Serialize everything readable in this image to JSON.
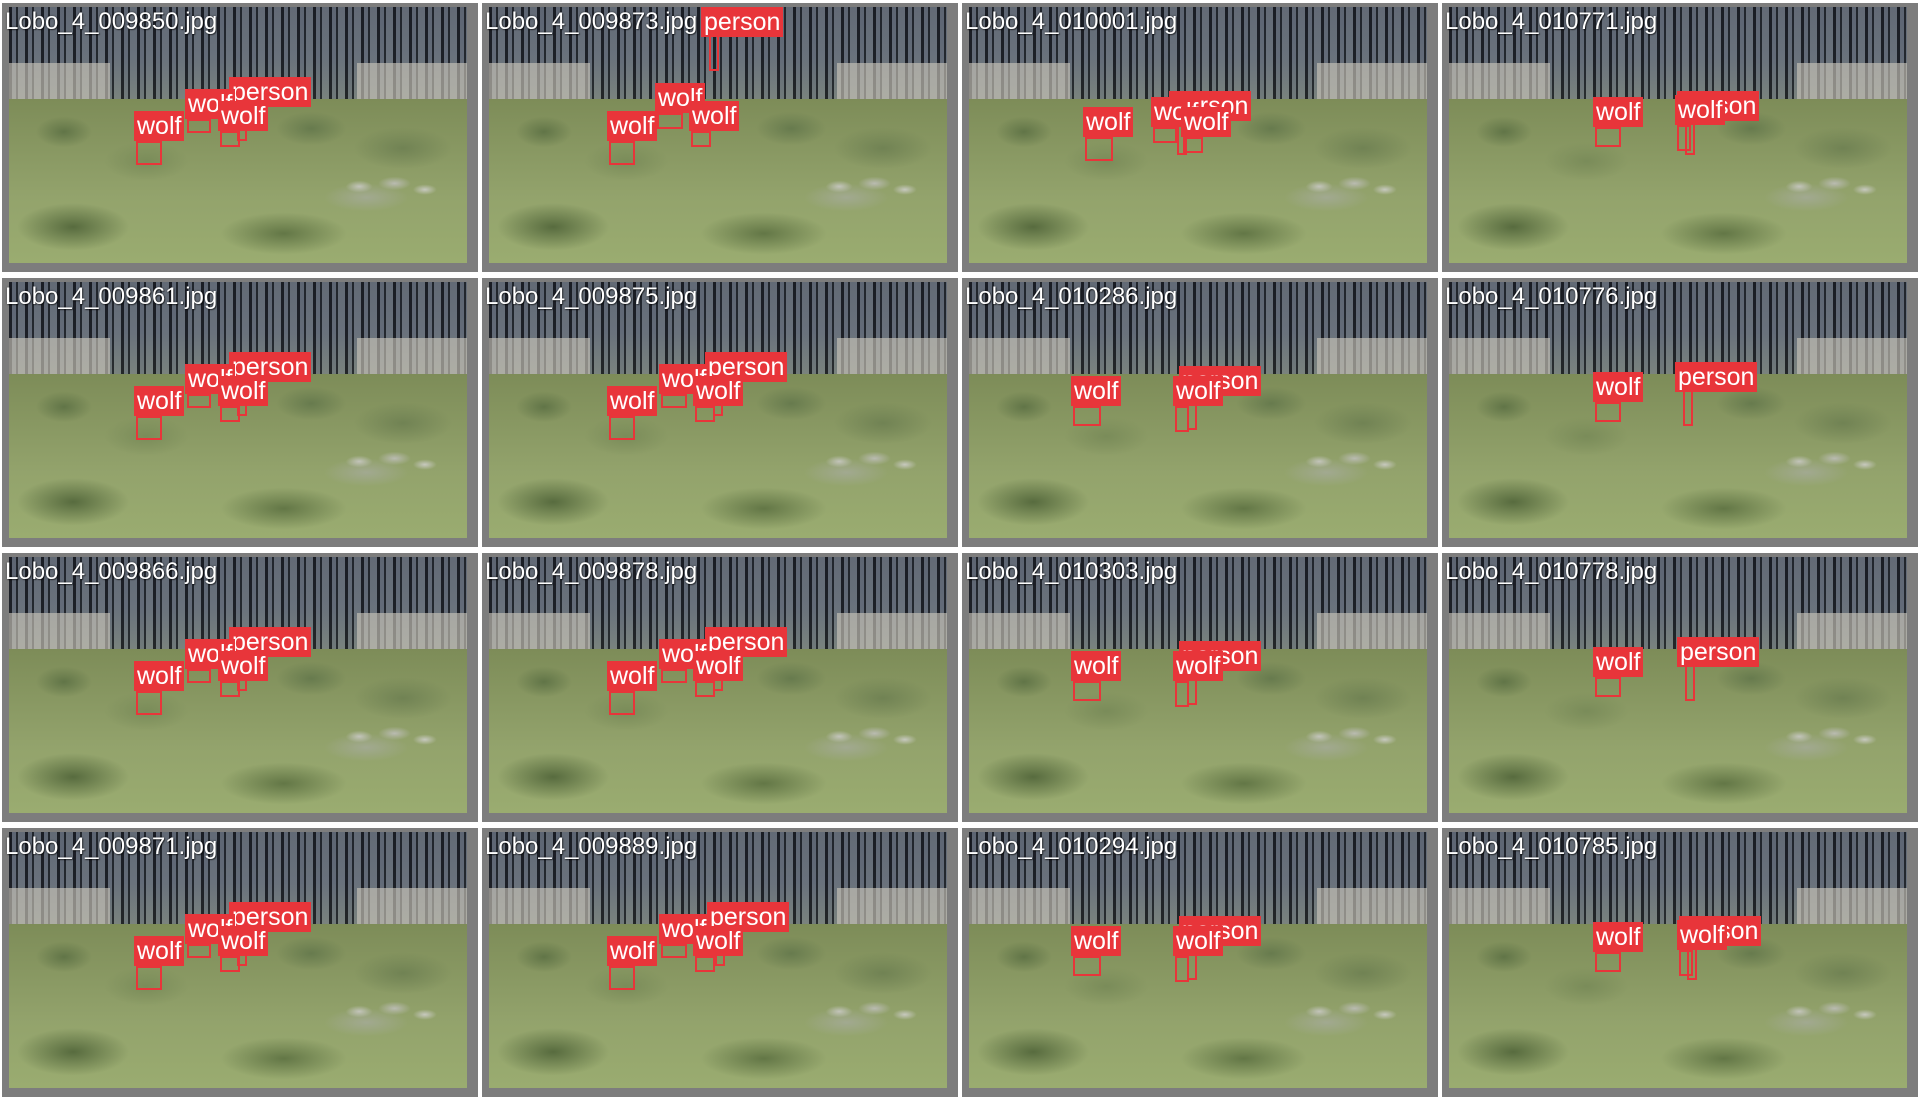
{
  "mosaic": {
    "class_colors": {
      "wolf": "#e8353a",
      "person": "#e8353a"
    },
    "tiles": [
      {
        "filename": "Lobo_4_009850.jpg",
        "detections": [
          {
            "label": "person"
          },
          {
            "label": "wolf"
          },
          {
            "label": "wolf"
          },
          {
            "label": "wolf"
          }
        ]
      },
      {
        "filename": "Lobo_4_009873.jpg",
        "detections": [
          {
            "label": "person"
          },
          {
            "label": "wolf"
          },
          {
            "label": "wolf"
          },
          {
            "label": "wolf"
          }
        ]
      },
      {
        "filename": "Lobo_4_010001.jpg",
        "detections": [
          {
            "label": "person"
          },
          {
            "label": "wolf"
          },
          {
            "label": "wolf"
          },
          {
            "label": "wolf"
          }
        ]
      },
      {
        "filename": "Lobo_4_010771.jpg",
        "detections": [
          {
            "label": "person"
          },
          {
            "label": "wolf"
          },
          {
            "label": "wolf"
          }
        ]
      },
      {
        "filename": "Lobo_4_009861.jpg",
        "detections": [
          {
            "label": "person"
          },
          {
            "label": "wolf"
          },
          {
            "label": "wolf"
          },
          {
            "label": "wolf"
          }
        ]
      },
      {
        "filename": "Lobo_4_009875.jpg",
        "detections": [
          {
            "label": "person"
          },
          {
            "label": "wolf"
          },
          {
            "label": "wolf"
          },
          {
            "label": "wolf"
          }
        ]
      },
      {
        "filename": "Lobo_4_010286.jpg",
        "detections": [
          {
            "label": "person"
          },
          {
            "label": "wolf"
          },
          {
            "label": "wolf"
          }
        ]
      },
      {
        "filename": "Lobo_4_010776.jpg",
        "detections": [
          {
            "label": "person"
          },
          {
            "label": "wolf"
          }
        ]
      },
      {
        "filename": "Lobo_4_009866.jpg",
        "detections": [
          {
            "label": "person"
          },
          {
            "label": "wolf"
          },
          {
            "label": "wolf"
          },
          {
            "label": "wolf"
          }
        ]
      },
      {
        "filename": "Lobo_4_009878.jpg",
        "detections": [
          {
            "label": "person"
          },
          {
            "label": "wolf"
          },
          {
            "label": "wolf"
          },
          {
            "label": "wolf"
          }
        ]
      },
      {
        "filename": "Lobo_4_010303.jpg",
        "detections": [
          {
            "label": "person"
          },
          {
            "label": "wolf"
          },
          {
            "label": "wolf"
          }
        ]
      },
      {
        "filename": "Lobo_4_010778.jpg",
        "detections": [
          {
            "label": "person"
          },
          {
            "label": "wolf"
          }
        ]
      },
      {
        "filename": "Lobo_4_009871.jpg",
        "detections": [
          {
            "label": "person"
          },
          {
            "label": "wolf"
          },
          {
            "label": "wolf"
          },
          {
            "label": "wolf"
          }
        ]
      },
      {
        "filename": "Lobo_4_009889.jpg",
        "detections": [
          {
            "label": "person"
          },
          {
            "label": "wolf"
          },
          {
            "label": "wolf"
          },
          {
            "label": "wolf"
          }
        ]
      },
      {
        "filename": "Lobo_4_010294.jpg",
        "detections": [
          {
            "label": "person"
          },
          {
            "label": "wolf"
          },
          {
            "label": "wolf"
          }
        ]
      },
      {
        "filename": "Lobo_4_010785.jpg",
        "detections": [
          {
            "label": "person"
          },
          {
            "label": "wolf"
          },
          {
            "label": "wolf"
          }
        ]
      }
    ]
  }
}
